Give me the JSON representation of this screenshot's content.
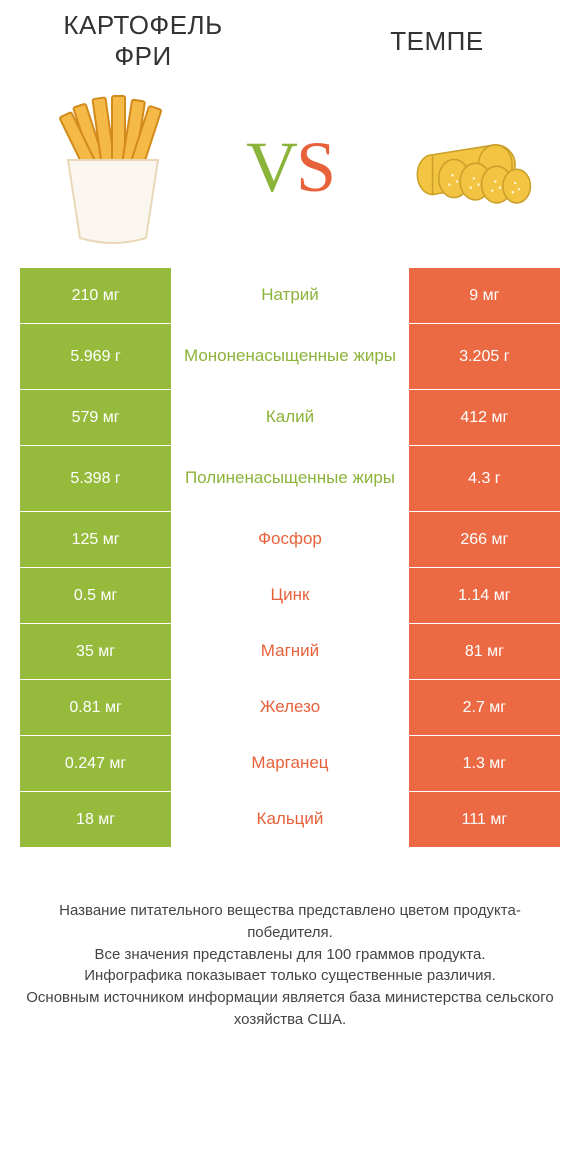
{
  "colors": {
    "green": "#96bb3c",
    "orange": "#eb6a44",
    "green_text": "#8cb33a",
    "orange_text": "#e7623a",
    "bg": "#ffffff"
  },
  "header": {
    "left_title": "КАРТОФЕЛЬ ФРИ",
    "right_title": "ТЕМПЕ",
    "vs_v": "V",
    "vs_s": "S"
  },
  "table": {
    "left_color": "#96bb3c",
    "right_color": "#eb6a44",
    "rows": [
      {
        "left": "210 мг",
        "label": "Натрий",
        "right": "9 мг",
        "winner": "left",
        "tall": false
      },
      {
        "left": "5.969 г",
        "label": "Мононенасыщенные жиры",
        "right": "3.205 г",
        "winner": "left",
        "tall": true
      },
      {
        "left": "579 мг",
        "label": "Калий",
        "right": "412 мг",
        "winner": "left",
        "tall": false
      },
      {
        "left": "5.398 г",
        "label": "Полиненасыщенные жиры",
        "right": "4.3 г",
        "winner": "left",
        "tall": true
      },
      {
        "left": "125 мг",
        "label": "Фосфор",
        "right": "266 мг",
        "winner": "right",
        "tall": false
      },
      {
        "left": "0.5 мг",
        "label": "Цинк",
        "right": "1.14 мг",
        "winner": "right",
        "tall": false
      },
      {
        "left": "35 мг",
        "label": "Магний",
        "right": "81 мг",
        "winner": "right",
        "tall": false
      },
      {
        "left": "0.81 мг",
        "label": "Железо",
        "right": "2.7 мг",
        "winner": "right",
        "tall": false
      },
      {
        "left": "0.247 мг",
        "label": "Марганец",
        "right": "1.3 мг",
        "winner": "right",
        "tall": false
      },
      {
        "left": "18 мг",
        "label": "Кальций",
        "right": "111 мг",
        "winner": "right",
        "tall": false
      }
    ]
  },
  "footer": {
    "l1": "Название питательного вещества представлено цветом продукта-победителя.",
    "l2": "Все значения представлены для 100 граммов продукта.",
    "l3": "Инфографика показывает только существенные различия.",
    "l4": "Основным источником информации является база министерства сельского хозяйства США."
  },
  "illustrations": {
    "fries": {
      "bag_fill": "#fbf7f0",
      "bag_stroke": "#e9d8b8",
      "fry_fill": "#f4b947",
      "fry_stroke": "#d28a1a"
    },
    "tempeh": {
      "fill": "#f2c441",
      "stroke": "#caa02a",
      "dot": "#fff6d8"
    }
  }
}
